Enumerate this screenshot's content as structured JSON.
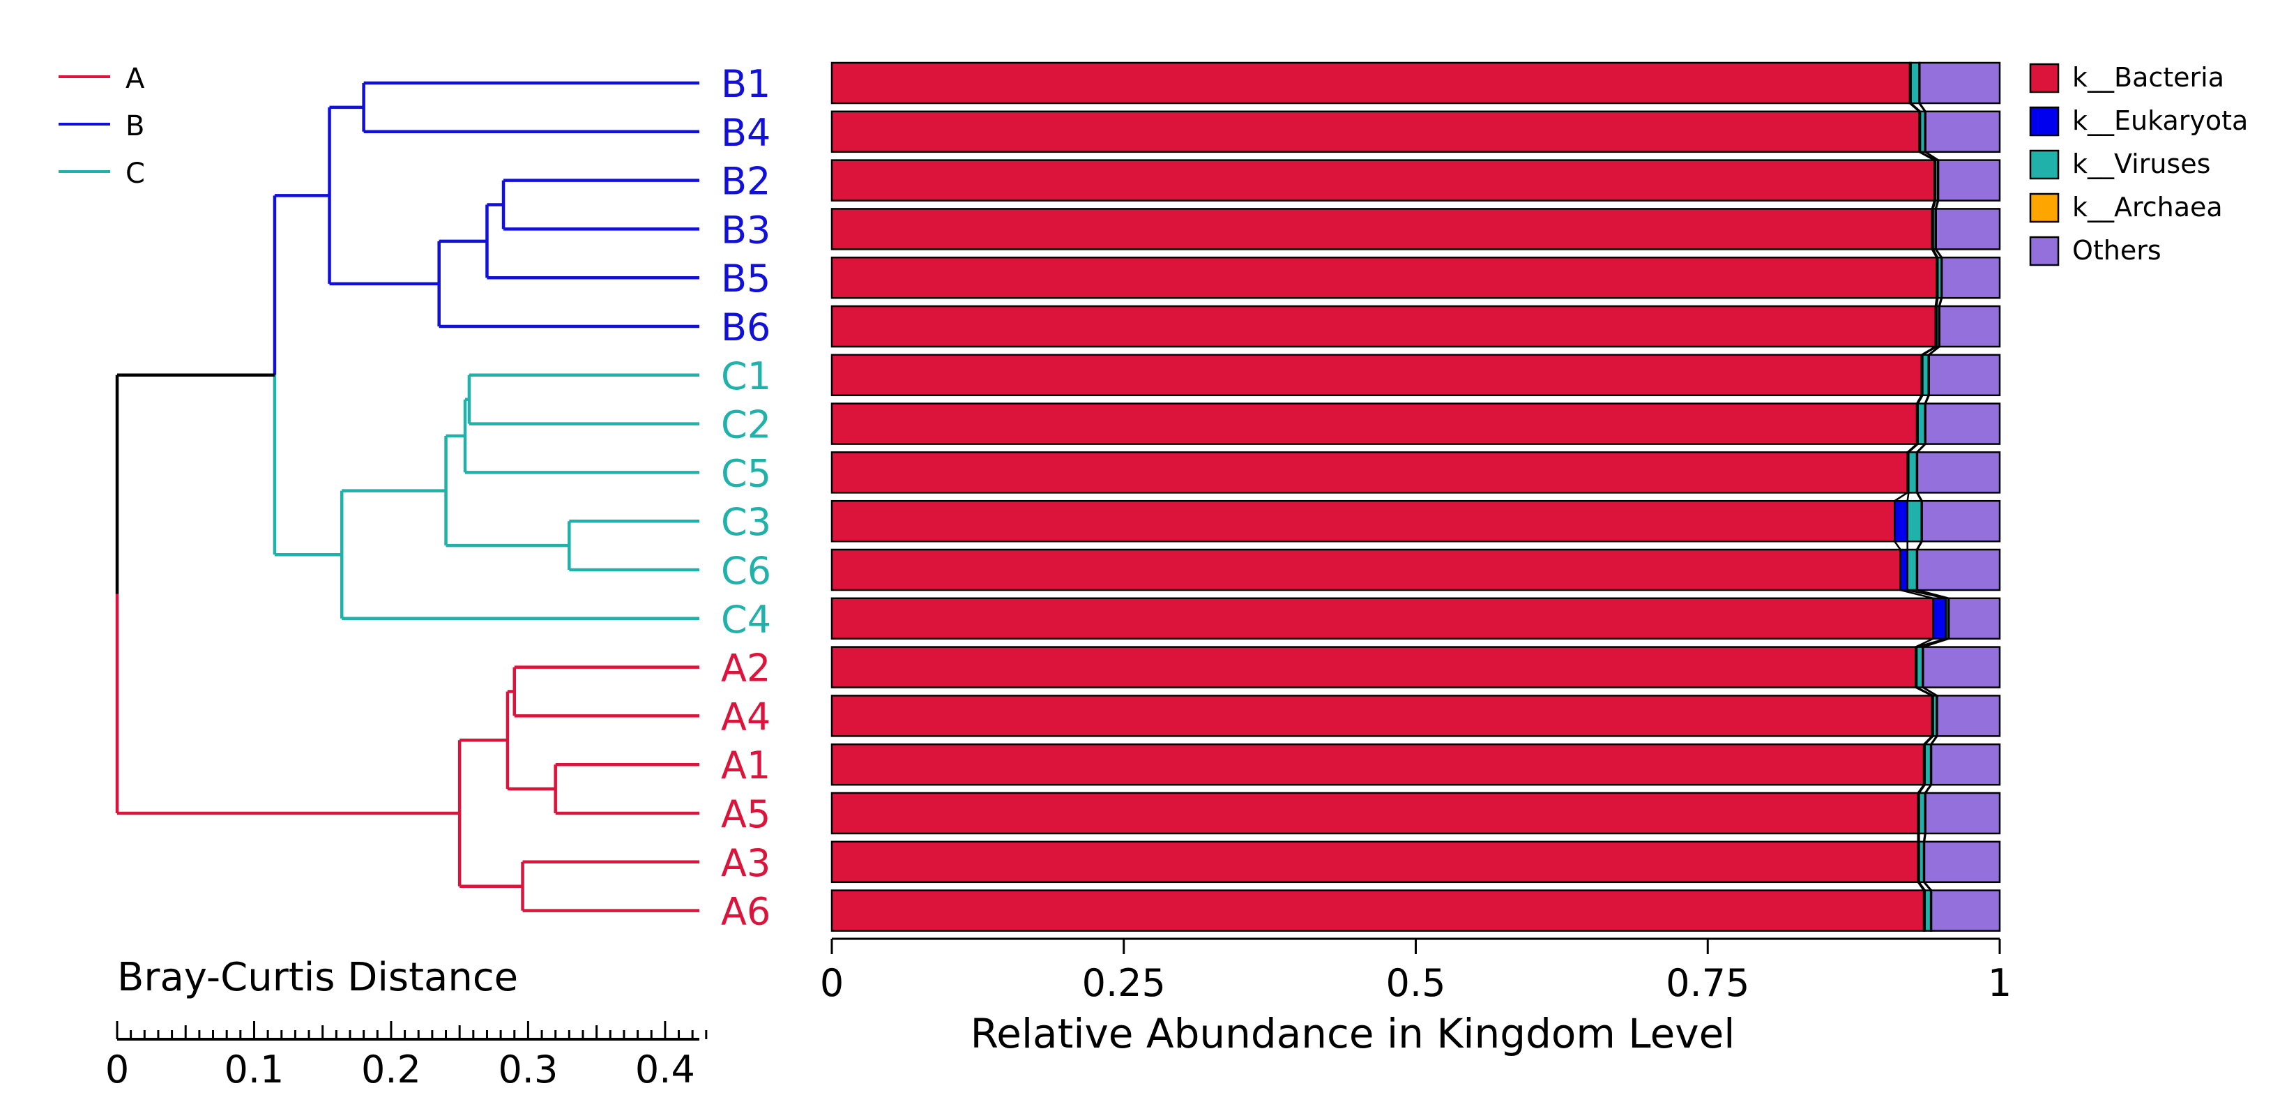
{
  "chart_data": {
    "type": "bar",
    "orientation": "horizontal",
    "stacked": true,
    "xlabel": "Relative Abundance in Kingdom Level",
    "xlim": [
      0,
      1
    ],
    "xticks": [
      "0",
      "0.25",
      "0.5",
      "0.75",
      "1"
    ],
    "xtick_values": [
      0,
      0.25,
      0.5,
      0.75,
      1
    ],
    "grid": false,
    "legend_position": "right",
    "categories": [
      "B1",
      "B4",
      "B2",
      "B3",
      "B5",
      "B6",
      "C1",
      "C2",
      "C5",
      "C3",
      "C6",
      "C4",
      "A2",
      "A4",
      "A1",
      "A5",
      "A3",
      "A6"
    ],
    "category_groups": [
      "B",
      "B",
      "B",
      "B",
      "B",
      "B",
      "C",
      "C",
      "C",
      "C",
      "C",
      "C",
      "A",
      "A",
      "A",
      "A",
      "A",
      "A"
    ],
    "series": [
      {
        "name": "k__Bacteria",
        "color": "#dc143c",
        "values": [
          0.923,
          0.931,
          0.944,
          0.942,
          0.946,
          0.945,
          0.933,
          0.929,
          0.921,
          0.91,
          0.915,
          0.943,
          0.928,
          0.942,
          0.935,
          0.93,
          0.93,
          0.935
        ]
      },
      {
        "name": "k__Eukaryota",
        "color": "#0000ee",
        "values": [
          0.001,
          0.001,
          0.001,
          0.001,
          0.001,
          0.001,
          0.001,
          0.001,
          0.001,
          0.011,
          0.006,
          0.011,
          0.001,
          0.001,
          0.001,
          0.001,
          0.001,
          0.001
        ]
      },
      {
        "name": "k__Viruses",
        "color": "#20b2aa",
        "values": [
          0.007,
          0.004,
          0.002,
          0.002,
          0.003,
          0.002,
          0.005,
          0.006,
          0.007,
          0.012,
          0.008,
          0.002,
          0.005,
          0.003,
          0.005,
          0.005,
          0.004,
          0.005
        ]
      },
      {
        "name": "k__Archaea",
        "color": "#ffa500",
        "values": [
          0.0005,
          0.0005,
          0.0005,
          0.0005,
          0.0005,
          0.0005,
          0.0005,
          0.0005,
          0.0005,
          0.0005,
          0.0005,
          0.0005,
          0.0005,
          0.0005,
          0.0005,
          0.0005,
          0.0005,
          0.0005
        ]
      },
      {
        "name": "Others",
        "color": "#9370db",
        "values": [
          0.0685,
          0.0635,
          0.0525,
          0.0545,
          0.0495,
          0.0515,
          0.0605,
          0.0635,
          0.0705,
          0.0665,
          0.0705,
          0.0435,
          0.0655,
          0.0535,
          0.0585,
          0.0635,
          0.0645,
          0.0585
        ]
      }
    ],
    "group_legend": [
      {
        "name": "A",
        "color": "#dc143c"
      },
      {
        "name": "B",
        "color": "#1010d8"
      },
      {
        "name": "C",
        "color": "#20b2aa"
      }
    ],
    "dendrogram": {
      "scale_label": "Bray-Curtis Distance",
      "scale_ticks": [
        "0",
        "0.1",
        "0.2",
        "0.3",
        "0.4"
      ],
      "scale_tick_values": [
        0,
        0.1,
        0.2,
        0.3,
        0.4
      ],
      "scale_max": 0.425,
      "nodes": [
        {
          "id": "n_b1b4",
          "children": [
            "B1",
            "B4"
          ],
          "height": 0.245
        },
        {
          "id": "n_b2b3",
          "children": [
            "B2",
            "B3"
          ],
          "height": 0.143
        },
        {
          "id": "n_b235",
          "children": [
            "n_b2b3",
            "B5"
          ],
          "height": 0.155
        },
        {
          "id": "n_b2356",
          "children": [
            "n_b235",
            "B6"
          ],
          "height": 0.19
        },
        {
          "id": "n_b",
          "children": [
            "n_b1b4",
            "n_b2356"
          ],
          "height": 0.27
        },
        {
          "id": "n_c1c2",
          "children": [
            "C1",
            "C2"
          ],
          "height": 0.168
        },
        {
          "id": "n_c125",
          "children": [
            "n_c1c2",
            "C5"
          ],
          "height": 0.171
        },
        {
          "id": "n_c3c6",
          "children": [
            "C3",
            "C6"
          ],
          "height": 0.095
        },
        {
          "id": "n_c12536",
          "children": [
            "n_c125",
            "n_c3c6"
          ],
          "height": 0.185
        },
        {
          "id": "n_c",
          "children": [
            "n_c12536",
            "C4"
          ],
          "height": 0.261
        },
        {
          "id": "n_bc",
          "children": [
            "n_b",
            "n_c"
          ],
          "height": 0.31
        },
        {
          "id": "n_a2a4",
          "children": [
            "A2",
            "A4"
          ],
          "height": 0.135
        },
        {
          "id": "n_a1a5",
          "children": [
            "A1",
            "A5"
          ],
          "height": 0.105
        },
        {
          "id": "n_a2415",
          "children": [
            "n_a2a4",
            "n_a1a5"
          ],
          "height": 0.14
        },
        {
          "id": "n_a3a6",
          "children": [
            "A3",
            "A6"
          ],
          "height": 0.129
        },
        {
          "id": "n_a",
          "children": [
            "n_a2415",
            "n_a3a6"
          ],
          "height": 0.175
        },
        {
          "id": "root",
          "children": [
            "n_bc",
            "n_a"
          ],
          "height": 0.425
        }
      ]
    }
  }
}
